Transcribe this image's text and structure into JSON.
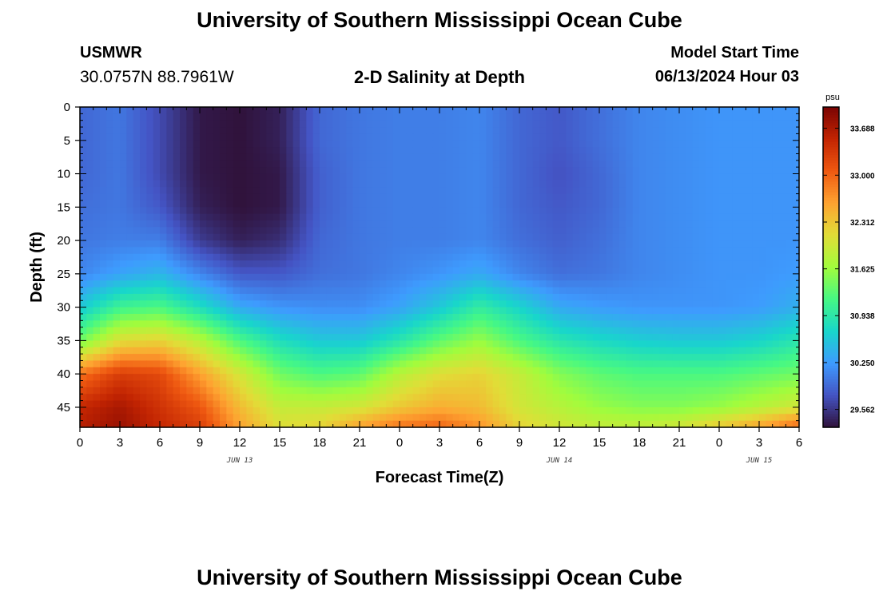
{
  "header": {
    "title": "University of Southern Mississippi Ocean Cube",
    "station": "USMWR",
    "coords": "30.0757N  88.7961W",
    "subtitle": "2-D Salinity at Depth",
    "model_start_label": "Model Start Time",
    "model_start_value": "06/13/2024 Hour 03"
  },
  "footer": {
    "title": "University of Southern Mississippi Ocean Cube"
  },
  "chart_data": {
    "type": "heatmap",
    "title": "2-D Salinity at Depth",
    "xlabel": "Forecast Time(Z)",
    "ylabel": "Depth (ft)",
    "x_ticks": [
      "0",
      "3",
      "6",
      "9",
      "12",
      "15",
      "18",
      "21",
      "0",
      "3",
      "6",
      "9",
      "12",
      "15",
      "18",
      "21",
      "0",
      "3",
      "6"
    ],
    "x_hours": [
      0,
      3,
      6,
      9,
      12,
      15,
      18,
      21,
      24,
      27,
      30,
      33,
      36,
      39,
      42,
      45,
      48,
      51,
      54
    ],
    "day_labels": [
      {
        "label": "JUN 13",
        "hour": 12
      },
      {
        "label": "JUN 14",
        "hour": 36
      },
      {
        "label": "JUN 15",
        "hour": 51
      }
    ],
    "y_ticks": [
      0,
      5,
      10,
      15,
      20,
      25,
      30,
      35,
      40,
      45
    ],
    "xlim": [
      0,
      54
    ],
    "ylim": [
      0,
      48
    ],
    "y_inverted": true,
    "colorbar": {
      "unit": "psu",
      "ticks": [
        "33.688",
        "33.000",
        "32.312",
        "31.625",
        "30.938",
        "30.250",
        "29.562"
      ],
      "tick_values": [
        33.688,
        33.0,
        32.312,
        31.625,
        30.938,
        30.25,
        29.562
      ],
      "range": [
        29.3,
        34.0
      ],
      "colors": [
        "#30123b",
        "#4454c4",
        "#3e9bfe",
        "#18d6cb",
        "#46f884",
        "#a2fc3c",
        "#e1dd37",
        "#fea331",
        "#ef5911",
        "#c22402",
        "#7a0403"
      ]
    },
    "time_hours": [
      0,
      3,
      6,
      9,
      12,
      15,
      18,
      21,
      24,
      27,
      30,
      33,
      36,
      39,
      42,
      45,
      48,
      51,
      54
    ],
    "depth_ft": [
      0,
      5,
      10,
      15,
      20,
      25,
      30,
      35,
      40,
      45,
      48
    ],
    "salinity_psu": [
      [
        29.9,
        30.0,
        29.7,
        29.35,
        29.3,
        29.4,
        29.9,
        30.0,
        30.05,
        30.05,
        30.1,
        29.9,
        29.8,
        29.95,
        30.1,
        30.15,
        30.2,
        30.2,
        30.2
      ],
      [
        29.9,
        30.0,
        29.7,
        29.35,
        29.3,
        29.4,
        29.9,
        30.0,
        30.05,
        30.05,
        30.1,
        29.9,
        29.8,
        29.95,
        30.1,
        30.15,
        30.2,
        30.2,
        30.2
      ],
      [
        29.9,
        30.0,
        29.7,
        29.35,
        29.3,
        29.35,
        29.85,
        30.0,
        30.05,
        30.05,
        30.1,
        29.9,
        29.75,
        29.9,
        30.1,
        30.15,
        30.2,
        30.2,
        30.2
      ],
      [
        29.95,
        30.0,
        29.8,
        29.4,
        29.3,
        29.35,
        29.85,
        30.0,
        30.05,
        30.05,
        30.1,
        29.9,
        29.8,
        29.9,
        30.1,
        30.15,
        30.2,
        30.2,
        30.2
      ],
      [
        30.0,
        30.05,
        30.05,
        29.6,
        29.4,
        29.5,
        29.9,
        30.0,
        30.05,
        30.05,
        30.1,
        29.95,
        29.85,
        29.95,
        30.1,
        30.15,
        30.2,
        30.2,
        30.2
      ],
      [
        30.1,
        30.3,
        30.45,
        30.1,
        29.8,
        29.8,
        29.95,
        30.0,
        30.1,
        30.2,
        30.35,
        30.1,
        29.95,
        30.0,
        30.1,
        30.15,
        30.2,
        30.2,
        30.25
      ],
      [
        30.6,
        31.1,
        31.2,
        30.8,
        30.35,
        30.2,
        30.15,
        30.15,
        30.3,
        30.6,
        31.0,
        30.7,
        30.35,
        30.25,
        30.2,
        30.2,
        30.2,
        30.25,
        30.4
      ],
      [
        31.4,
        32.1,
        32.2,
        31.8,
        31.2,
        30.8,
        30.6,
        30.6,
        30.9,
        31.3,
        31.6,
        31.2,
        30.9,
        30.75,
        30.65,
        30.6,
        30.6,
        30.7,
        30.9
      ],
      [
        32.9,
        33.3,
        33.2,
        32.6,
        32.0,
        31.4,
        31.2,
        31.3,
        31.8,
        32.1,
        32.2,
        31.9,
        31.5,
        31.3,
        31.2,
        31.2,
        31.2,
        31.3,
        31.4
      ],
      [
        33.5,
        33.7,
        33.4,
        33.1,
        32.4,
        31.9,
        31.9,
        32.0,
        32.3,
        32.5,
        32.4,
        32.0,
        31.8,
        31.6,
        31.5,
        31.5,
        31.6,
        31.8,
        32.0
      ],
      [
        33.6,
        33.8,
        33.5,
        33.3,
        32.6,
        32.1,
        32.2,
        32.6,
        32.9,
        33.0,
        32.7,
        32.2,
        32.0,
        31.9,
        31.9,
        32.0,
        32.3,
        32.6,
        33.0
      ]
    ]
  }
}
